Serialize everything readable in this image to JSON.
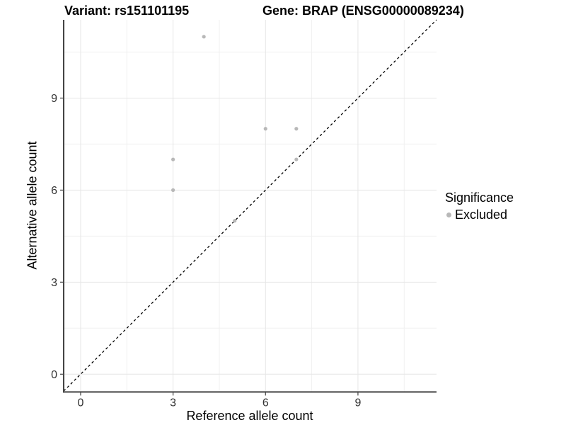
{
  "titles": {
    "variant": "Variant: rs151101195",
    "gene": "Gene: BRAP (ENSG00000089234)"
  },
  "legend": {
    "title": "Significance",
    "items": [
      {
        "label": "Excluded",
        "color": "#b8b8b8"
      }
    ]
  },
  "chart_data": {
    "type": "scatter",
    "title": "",
    "xlabel": "Reference allele count",
    "ylabel": "Alternative allele count",
    "xlim": [
      -0.55,
      11.55
    ],
    "ylim": [
      -0.58,
      11.55
    ],
    "xticks": [
      0,
      3,
      6,
      9
    ],
    "yticks": [
      0,
      3,
      6,
      9
    ],
    "minor_xticks": [
      1.5,
      4.5,
      7.5,
      10.5
    ],
    "minor_yticks": [
      1.5,
      4.5,
      7.5,
      10.5
    ],
    "grid": true,
    "legend_position": "right",
    "series": [
      {
        "name": "Excluded",
        "color": "#b8b8b8",
        "points": [
          [
            3,
            6
          ],
          [
            3,
            7
          ],
          [
            4,
            11
          ],
          [
            5,
            5
          ],
          [
            6,
            8
          ],
          [
            7,
            7
          ],
          [
            7,
            8
          ]
        ]
      }
    ],
    "reference_line": {
      "type": "identity",
      "style": "dashed",
      "color": "#000000"
    }
  }
}
